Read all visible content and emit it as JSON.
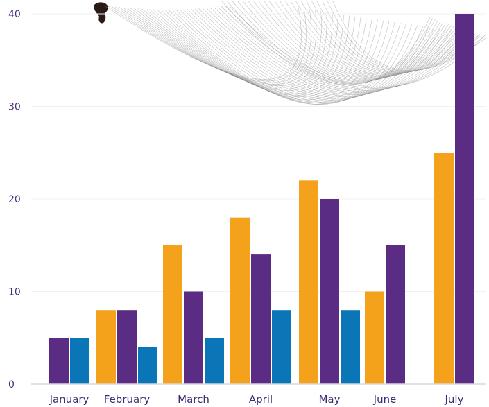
{
  "chart_data": {
    "type": "bar",
    "categories": [
      "January",
      "February",
      "March",
      "April",
      "May",
      "June",
      "July"
    ],
    "series": [
      {
        "color": "#F4A21C",
        "values": [
          null,
          8,
          15,
          18,
          22,
          10,
          25
        ]
      },
      {
        "color": "#5B2C83",
        "values": [
          5,
          8,
          10,
          14,
          20,
          15,
          40
        ]
      },
      {
        "color": "#0A76B8",
        "values": [
          5,
          4,
          5,
          8,
          8,
          null,
          null
        ]
      }
    ],
    "yticks": [
      0,
      10,
      20,
      30,
      40
    ],
    "ylim": [
      0,
      40
    ],
    "grid": true,
    "legend": false,
    "decorations": [
      "ink-blot",
      "string-art-pattern"
    ]
  }
}
